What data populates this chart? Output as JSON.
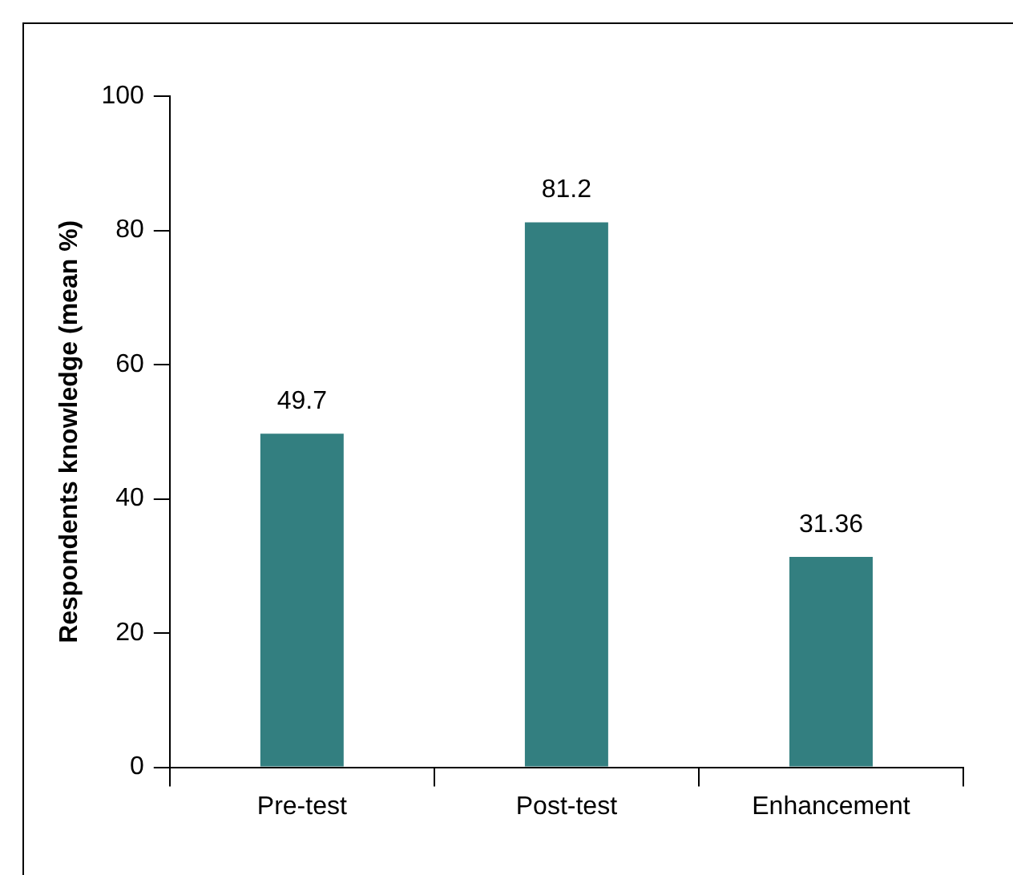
{
  "chart_data": {
    "type": "bar",
    "ylabel": "Respondents knowledge (mean %)",
    "categories": [
      "Pre-test",
      "Post-test",
      "Enhancement"
    ],
    "values": [
      49.7,
      81.2,
      31.36
    ],
    "color": "#337f80",
    "ylim": [
      0,
      100
    ],
    "yticks": [
      0,
      20,
      40,
      60,
      80,
      100
    ],
    "grid": false,
    "legend": false,
    "data_labels": true
  }
}
